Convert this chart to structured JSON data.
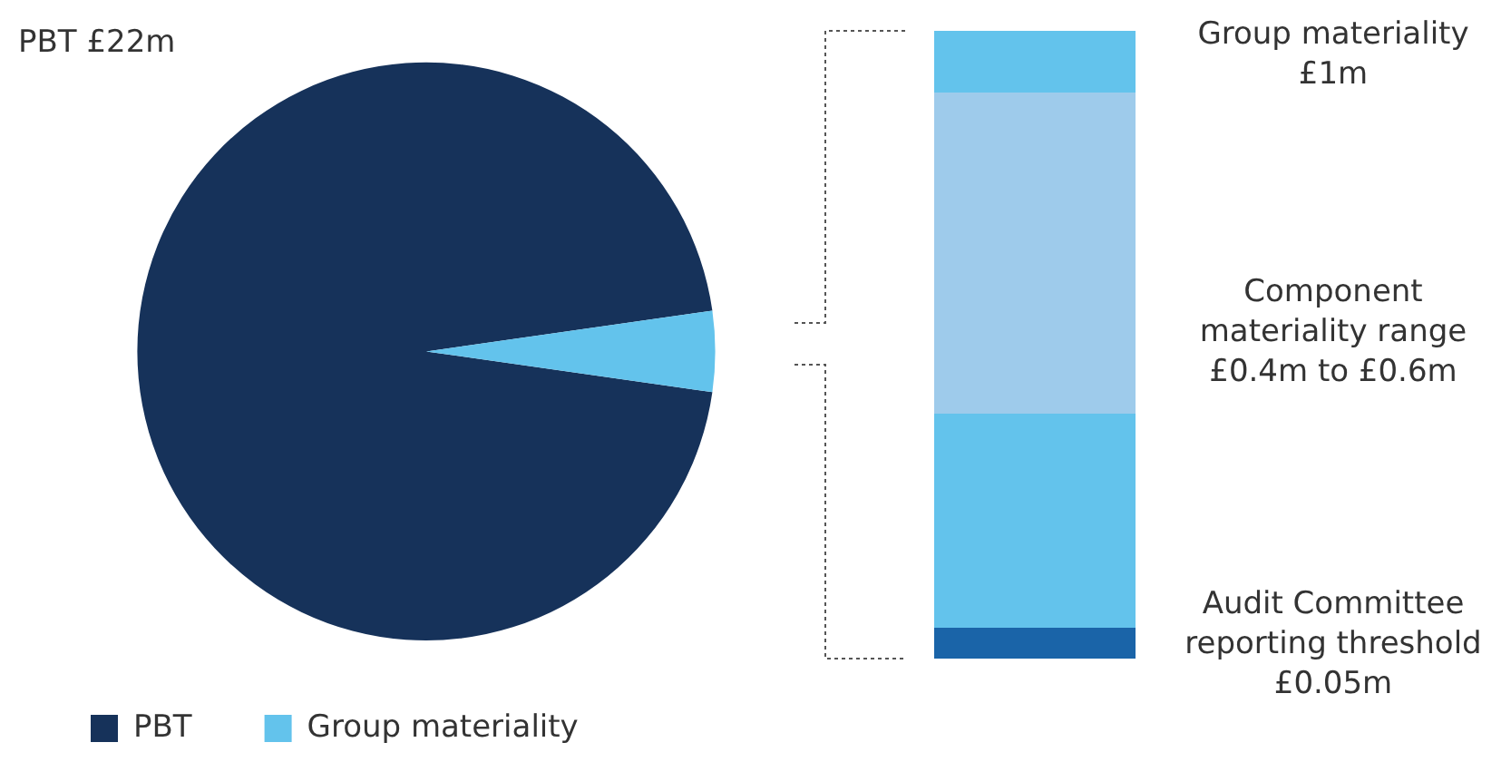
{
  "chart_data": [
    {
      "type": "pie",
      "title": "PBT £22m",
      "categories": [
        "PBT",
        "Group materiality"
      ],
      "values": [
        95.5,
        4.5
      ],
      "colors": [
        "#16325a",
        "#63c3ec"
      ],
      "legend": "bottom left"
    },
    {
      "type": "other",
      "annotations": [
        "Group materiality £1m",
        "Component materiality range £0.4m to £0.6m",
        "Audit Committee reporting threshold £0.05m"
      ]
    }
  ]
}
